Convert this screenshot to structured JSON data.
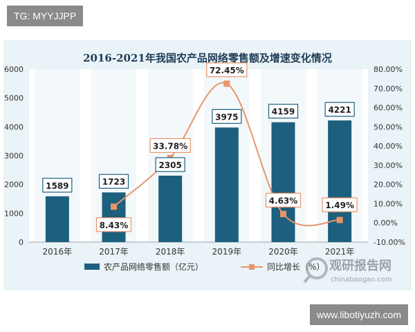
{
  "overlays": {
    "top_tag": "TG: MYYJJPP",
    "bottom_tag": "www.libotiyuzh.com"
  },
  "watermark": {
    "brand": "观研报告网",
    "url": "chinabaogao.com"
  },
  "colors": {
    "bar": "#1c5f7e",
    "line": "#e8956a",
    "marker": "#e8956a",
    "frame_bg": "#eaf3f7",
    "plot_bg": "#ffffff"
  },
  "chart_data": {
    "type": "bar",
    "title": "2016-2021年我国农产品网络零售额及增速变化情况",
    "categories": [
      "2016年",
      "2017年",
      "2018年",
      "2019年",
      "2020年",
      "2021年"
    ],
    "series": [
      {
        "name": "农产品网络零售额（亿元）",
        "type": "bar",
        "axis": "left",
        "values": [
          1589,
          1723,
          2305,
          3975,
          4159,
          4221
        ],
        "labels": [
          "1589",
          "1723",
          "2305",
          "3975",
          "4159",
          "4221"
        ]
      },
      {
        "name": "同比增长（%）",
        "type": "line",
        "axis": "right",
        "values": [
          null,
          8.43,
          33.78,
          72.45,
          4.63,
          1.49
        ],
        "labels": [
          "",
          "8.43%",
          "33.78%",
          "72.45%",
          "4.63%",
          "1.49%"
        ]
      }
    ],
    "y_left": {
      "lim": [
        0,
        6000
      ],
      "ticks": [
        0,
        1000,
        2000,
        3000,
        4000,
        5000,
        6000
      ],
      "tick_labels": [
        "0",
        "1000",
        "2000",
        "3000",
        "4000",
        "5000",
        "6000"
      ]
    },
    "y_right": {
      "lim": [
        -10,
        80
      ],
      "ticks": [
        -10,
        0,
        10,
        20,
        30,
        40,
        50,
        60,
        70,
        80
      ],
      "tick_labels": [
        "-10.00%",
        "0.00%",
        "10.00%",
        "20.00%",
        "30.00%",
        "40.00%",
        "50.00%",
        "60.00%",
        "70.00%",
        "80.00%"
      ]
    },
    "grid": false,
    "legend_position": "bottom"
  }
}
